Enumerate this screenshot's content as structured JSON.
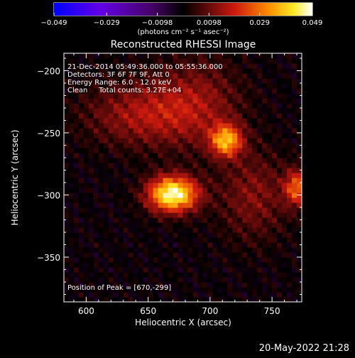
{
  "chart_data": {
    "type": "heatmap",
    "title": "Reconstructed RHESSI Image",
    "xlabel": "Heliocentric X (arcsec)",
    "ylabel": "Heliocentric Y (arcsec)",
    "xlim": [
      582,
      774
    ],
    "ylim": [
      -386,
      -186
    ],
    "xticks": [
      600,
      650,
      700,
      750
    ],
    "xtick_labels": [
      "600",
      "650",
      "700",
      "750"
    ],
    "yticks": [
      -200,
      -250,
      -300,
      -350
    ],
    "ytick_labels": [
      "−200",
      "−250",
      "−300",
      "−350"
    ],
    "colorbar": {
      "min": -0.049,
      "max": 0.049,
      "ticks": [
        -0.049,
        -0.029,
        -0.0098,
        0.0098,
        0.029,
        0.049
      ],
      "tick_labels": [
        "−0.049",
        "−0.029",
        "−0.0098",
        "0.0098",
        "0.029",
        "0.049"
      ],
      "unit_label": "(photons cm⁻² s⁻¹ asec⁻²)",
      "colormap": "rhessi-blue-to-hot"
    },
    "annotations": [
      "21-Dec-2014 05:49:36.000 to 05:55:36.000",
      "Detectors: 3F 6F 7F 9F, Att 0",
      "Energy Range: 6.0 - 12.0 keV",
      "Clean     Total counts: 3.27E+04"
    ],
    "peak_label": "Position of Peak = [670,-299]",
    "peak": {
      "x": 670,
      "y": -299
    },
    "sources": [
      {
        "x": 670,
        "y": -299,
        "value": 0.049,
        "width_arcsec": 14,
        "height_arcsec": 10
      },
      {
        "x": 713,
        "y": -256,
        "value": 0.034,
        "width_arcsec": 9,
        "height_arcsec": 9
      },
      {
        "x": 770,
        "y": -294,
        "value": 0.026,
        "width_arcsec": 7,
        "height_arcsec": 10
      },
      {
        "x": 645,
        "y": -235,
        "value": 0.015,
        "width_arcsec": 32,
        "height_arcsec": 18
      },
      {
        "x": 690,
        "y": -225,
        "value": 0.012,
        "width_arcsec": 25,
        "height_arcsec": 25
      },
      {
        "x": 735,
        "y": -300,
        "value": 0.012,
        "width_arcsec": 20,
        "height_arcsec": 25
      }
    ],
    "grid": false
  },
  "footer": {
    "timestamp": "20-May-2022 21:28"
  }
}
